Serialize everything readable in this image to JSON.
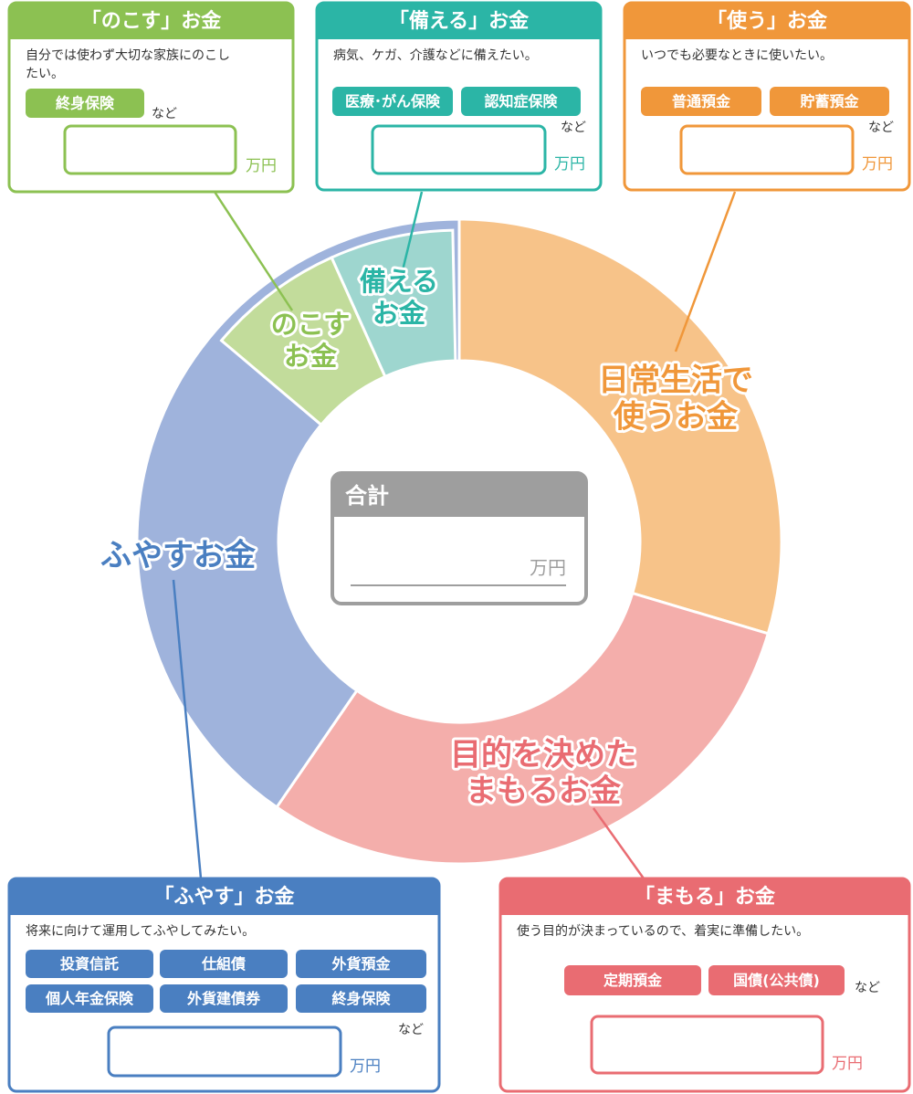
{
  "boxes": [
    {
      "title": "「のこす」お金",
      "description": [
        "自分では使わず大切な家族にのこし",
        "たい。"
      ],
      "tags": [
        "終身保険"
      ],
      "etc": "など",
      "unit": "万円"
    },
    {
      "title": "「備える」お金",
      "description": [
        "病気、ケガ、介護などに備えたい。"
      ],
      "tags": [
        "医療･がん保険",
        "認知症保険"
      ],
      "etc": "など",
      "unit": "万円"
    },
    {
      "title": "「使う」お金",
      "description": [
        "いつでも必要なときに使いたい。"
      ],
      "tags": [
        "普通預金",
        "貯蓄預金"
      ],
      "etc": "など",
      "unit": "万円"
    },
    {
      "title": "「ふやす」お金",
      "description": [
        "将来に向けて運用してふやしてみたい。"
      ],
      "tags": [
        "投資信託",
        "仕組債",
        "外貨預金",
        "個人年金保険",
        "外貨建債券",
        "終身保険"
      ],
      "etc": "など",
      "unit": "万円"
    },
    {
      "title": "「まもる」お金",
      "description": [
        "使う目的が決まっているので、着実に準備したい。"
      ],
      "tags": [
        "定期預金",
        "国債(公共債)"
      ],
      "etc": "など",
      "unit": "万円"
    }
  ],
  "donut": {
    "segments": [
      {
        "label": [
          "日常生活で",
          "使うお金"
        ]
      },
      {
        "label": [
          "目的を決めた",
          "まもるお金"
        ]
      },
      {
        "label": [
          "ふやすお金"
        ]
      },
      {
        "label": [
          "のこす",
          "お金"
        ]
      },
      {
        "label": [
          "備える",
          "お金"
        ]
      }
    ]
  },
  "total": {
    "title": "合計",
    "unit": "万円"
  }
}
